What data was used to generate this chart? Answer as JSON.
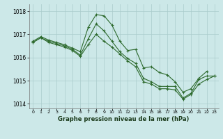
{
  "title": "Graphe pression niveau de la mer (hPa)",
  "background_color": "#cce8e8",
  "grid_color": "#aacccc",
  "line_color": "#2d6a2d",
  "xlim": [
    -0.5,
    23.5
  ],
  "ylim": [
    1013.8,
    1018.3
  ],
  "yticks": [
    1014,
    1015,
    1016,
    1017,
    1018
  ],
  "xticks": [
    0,
    1,
    2,
    3,
    4,
    5,
    6,
    7,
    8,
    9,
    10,
    11,
    12,
    13,
    14,
    15,
    16,
    17,
    18,
    19,
    20,
    21,
    22,
    23
  ],
  "line1_x": [
    0,
    1,
    2,
    3,
    4,
    5,
    6,
    7,
    8,
    9,
    10,
    11,
    12,
    13,
    14,
    15,
    16,
    17,
    18,
    19,
    20,
    21,
    22
  ],
  "line1_y": [
    1016.7,
    1016.9,
    1016.75,
    1016.65,
    1016.55,
    1016.4,
    1016.25,
    1017.3,
    1017.85,
    1017.8,
    1017.4,
    1016.7,
    1016.3,
    1016.35,
    1015.55,
    1015.6,
    1015.35,
    1015.25,
    1014.95,
    1014.5,
    1014.65,
    1015.1,
    1015.4
  ],
  "line2_x": [
    0,
    1,
    2,
    3,
    4,
    5,
    6,
    7,
    8,
    9,
    10,
    11,
    12,
    13,
    14,
    15,
    16,
    17,
    18,
    19,
    20,
    21,
    22,
    23
  ],
  "line2_y": [
    1016.65,
    1016.85,
    1016.7,
    1016.6,
    1016.5,
    1016.35,
    1016.1,
    1016.8,
    1017.45,
    1017.15,
    1016.7,
    1016.25,
    1015.95,
    1015.75,
    1015.1,
    1014.95,
    1014.75,
    1014.75,
    1014.75,
    1014.25,
    1014.45,
    1015.05,
    1015.2,
    1015.2
  ],
  "line3_x": [
    0,
    1,
    2,
    3,
    4,
    5,
    6,
    7,
    8,
    9,
    10,
    11,
    12,
    13,
    14,
    15,
    16,
    17,
    18,
    19,
    20,
    21,
    22,
    23
  ],
  "line3_y": [
    1016.65,
    1016.85,
    1016.65,
    1016.55,
    1016.45,
    1016.3,
    1016.05,
    1016.55,
    1017.0,
    1016.7,
    1016.45,
    1016.15,
    1015.85,
    1015.6,
    1014.95,
    1014.85,
    1014.65,
    1014.65,
    1014.6,
    1014.2,
    1014.4,
    1014.85,
    1015.05,
    1015.2
  ]
}
